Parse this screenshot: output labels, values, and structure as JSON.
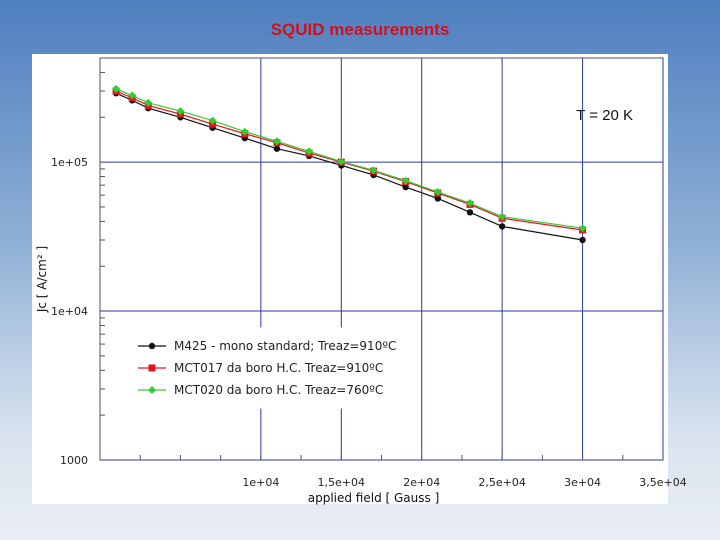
{
  "slide": {
    "title": "SQUID measurements"
  },
  "chart_data": {
    "type": "line",
    "title": "",
    "xlabel": "applied field [ Gauss ]",
    "ylabel": "Jc [ A/cm² ]",
    "y_scale": "log",
    "xlim": [
      0,
      35000
    ],
    "ylim": [
      1000,
      500000
    ],
    "x_ticks": [
      10000,
      15000,
      20000,
      25000,
      30000,
      35000
    ],
    "x_tick_labels": [
      "1e+04",
      "1,5e+04",
      "2e+04",
      "2,5e+04",
      "3e+04",
      "3,5e+04"
    ],
    "y_ticks": [
      1000,
      10000,
      100000
    ],
    "y_tick_labels": [
      "1000",
      "1e+04",
      "1e+05"
    ],
    "grid": true,
    "annotation": "T = 20 K",
    "legend_position": "lower-left",
    "series": [
      {
        "name": "M425 - mono standard; Treaz=910ºC",
        "color": "#111111",
        "marker": "circle",
        "x": [
          1000,
          2000,
          3000,
          5000,
          7000,
          9000,
          11000,
          13000,
          15000,
          17000,
          19000,
          21000,
          23000,
          25000,
          30000
        ],
        "y": [
          290000,
          260000,
          230000,
          200000,
          170000,
          145000,
          123000,
          110000,
          95000,
          82000,
          68000,
          57000,
          46000,
          37000,
          30000
        ]
      },
      {
        "name": "MCT017 da boro H.C. Treaz=910ºC",
        "color": "#e8141c",
        "marker": "square",
        "x": [
          1000,
          2000,
          3000,
          5000,
          7000,
          9000,
          11000,
          13000,
          15000,
          17000,
          19000,
          21000,
          23000,
          25000,
          30000
        ],
        "y": [
          300000,
          270000,
          240000,
          210000,
          180000,
          155000,
          135000,
          115000,
          100000,
          87000,
          74000,
          62000,
          52000,
          42000,
          35000
        ]
      },
      {
        "name": "MCT020 da boro H.C. Treaz=760ºC",
        "color": "#33cc33",
        "marker": "diamond",
        "x": [
          1000,
          2000,
          3000,
          5000,
          7000,
          9000,
          11000,
          13000,
          15000,
          17000,
          19000,
          21000,
          23000,
          25000,
          30000
        ],
        "y": [
          310000,
          280000,
          250000,
          220000,
          190000,
          160000,
          138000,
          118000,
          101000,
          88000,
          75000,
          63000,
          53000,
          43000,
          36000
        ]
      }
    ]
  }
}
